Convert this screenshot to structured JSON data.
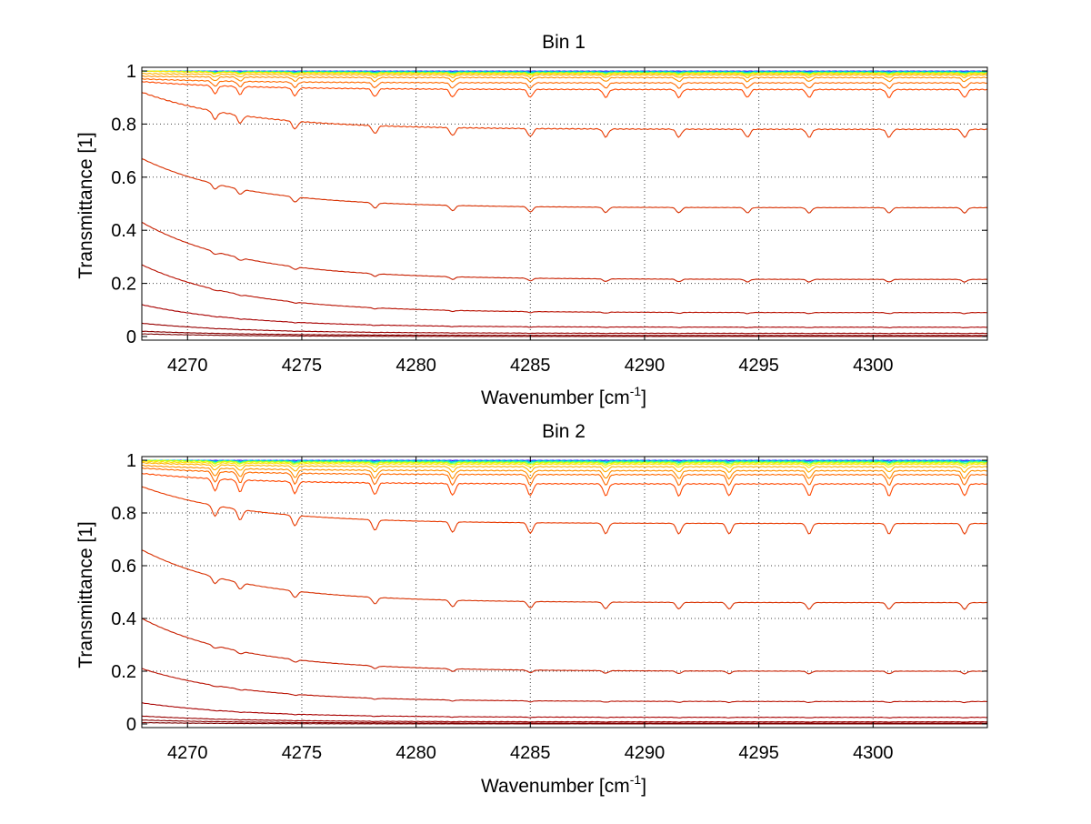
{
  "chart_data": [
    {
      "type": "line",
      "title": "Bin 1",
      "xlabel": "Wavenumber [cm",
      "xlabel_sup": "-1",
      "xlabel_end": "]",
      "ylabel": "Transmittance [1]",
      "xlim": [
        4268,
        4305
      ],
      "ylim": [
        0,
        1
      ],
      "xticks": [
        4270,
        4275,
        4280,
        4285,
        4290,
        4295,
        4300
      ],
      "yticks": [
        0,
        0.2,
        0.4,
        0.6,
        0.8,
        1
      ],
      "ytick_labels": [
        "0",
        "0.2",
        "0.4",
        "0.6",
        "0.8",
        "1"
      ],
      "grid": true,
      "grid_style": "dotted",
      "absorption_lines": [
        4271.2,
        4272.3,
        4274.7,
        4278.2,
        4281.6,
        4285.0,
        4288.3,
        4291.5,
        4294.5,
        4297.2,
        4300.7,
        4304.0
      ],
      "series": [
        {
          "color": "#2b00ff",
          "start": 1.0,
          "end": 1.0,
          "depth": 0.0
        },
        {
          "color": "#00b0ff",
          "start": 1.0,
          "end": 0.998,
          "depth": 0.002
        },
        {
          "color": "#00e0c0",
          "start": 1.0,
          "end": 0.996,
          "depth": 0.003
        },
        {
          "color": "#66ff66",
          "start": 1.0,
          "end": 0.994,
          "depth": 0.004
        },
        {
          "color": "#d8ff00",
          "start": 1.0,
          "end": 0.992,
          "depth": 0.005
        },
        {
          "color": "#ffe000",
          "start": 1.0,
          "end": 0.99,
          "depth": 0.007
        },
        {
          "color": "#ffb000",
          "start": 0.99,
          "end": 0.985,
          "depth": 0.01
        },
        {
          "color": "#ff9000",
          "start": 0.98,
          "end": 0.975,
          "depth": 0.015
        },
        {
          "color": "#ff6a00",
          "start": 0.97,
          "end": 0.955,
          "depth": 0.02
        },
        {
          "color": "#ff4800",
          "start": 0.96,
          "end": 0.93,
          "depth": 0.03
        },
        {
          "color": "#e83a00",
          "start": 0.92,
          "end": 0.78,
          "depth": 0.03
        },
        {
          "color": "#d83000",
          "start": 0.67,
          "end": 0.485,
          "depth": 0.02
        },
        {
          "color": "#c82000",
          "start": 0.43,
          "end": 0.215,
          "depth": 0.01
        },
        {
          "color": "#b81000",
          "start": 0.27,
          "end": 0.09,
          "depth": 0.004
        },
        {
          "color": "#a80000",
          "start": 0.12,
          "end": 0.035,
          "depth": 0.002
        },
        {
          "color": "#980000",
          "start": 0.05,
          "end": 0.012,
          "depth": 0.001
        },
        {
          "color": "#880000",
          "start": 0.02,
          "end": 0.004,
          "depth": 0.0
        },
        {
          "color": "#780000",
          "start": 0.01,
          "end": 0.0,
          "depth": 0.0
        }
      ]
    },
    {
      "type": "line",
      "title": "Bin 2",
      "xlabel": "Wavenumber [cm",
      "xlabel_sup": "-1",
      "xlabel_end": "]",
      "ylabel": "Transmittance [1]",
      "xlim": [
        4268,
        4305
      ],
      "ylim": [
        0,
        1
      ],
      "xticks": [
        4270,
        4275,
        4280,
        4285,
        4290,
        4295,
        4300
      ],
      "yticks": [
        0,
        0.2,
        0.4,
        0.6,
        0.8,
        1
      ],
      "ytick_labels": [
        "0",
        "0.2",
        "0.4",
        "0.6",
        "0.8",
        "1"
      ],
      "grid": true,
      "grid_style": "dotted",
      "absorption_lines": [
        4271.2,
        4272.3,
        4274.7,
        4278.2,
        4281.6,
        4285.0,
        4288.3,
        4291.5,
        4293.7,
        4297.2,
        4300.7,
        4304.0
      ],
      "series": [
        {
          "color": "#2b00ff",
          "start": 1.0,
          "end": 1.0,
          "depth": 0.0
        },
        {
          "color": "#00b0ff",
          "start": 1.0,
          "end": 0.998,
          "depth": 0.003
        },
        {
          "color": "#00e0c0",
          "start": 1.0,
          "end": 0.996,
          "depth": 0.004
        },
        {
          "color": "#66ff66",
          "start": 1.0,
          "end": 0.993,
          "depth": 0.006
        },
        {
          "color": "#d8ff00",
          "start": 1.0,
          "end": 0.99,
          "depth": 0.008
        },
        {
          "color": "#ffe000",
          "start": 0.995,
          "end": 0.985,
          "depth": 0.012
        },
        {
          "color": "#ffb000",
          "start": 0.99,
          "end": 0.975,
          "depth": 0.02
        },
        {
          "color": "#ff9000",
          "start": 0.98,
          "end": 0.96,
          "depth": 0.03
        },
        {
          "color": "#ff6a00",
          "start": 0.97,
          "end": 0.945,
          "depth": 0.04
        },
        {
          "color": "#ff4800",
          "start": 0.95,
          "end": 0.91,
          "depth": 0.045
        },
        {
          "color": "#e83a00",
          "start": 0.9,
          "end": 0.76,
          "depth": 0.04
        },
        {
          "color": "#d83000",
          "start": 0.66,
          "end": 0.46,
          "depth": 0.025
        },
        {
          "color": "#c82000",
          "start": 0.4,
          "end": 0.2,
          "depth": 0.01
        },
        {
          "color": "#b81000",
          "start": 0.21,
          "end": 0.085,
          "depth": 0.004
        },
        {
          "color": "#a80000",
          "start": 0.08,
          "end": 0.025,
          "depth": 0.002
        },
        {
          "color": "#980000",
          "start": 0.03,
          "end": 0.008,
          "depth": 0.001
        },
        {
          "color": "#880000",
          "start": 0.015,
          "end": 0.003,
          "depth": 0.0
        },
        {
          "color": "#780000",
          "start": 0.005,
          "end": 0.0,
          "depth": 0.0
        }
      ]
    }
  ]
}
